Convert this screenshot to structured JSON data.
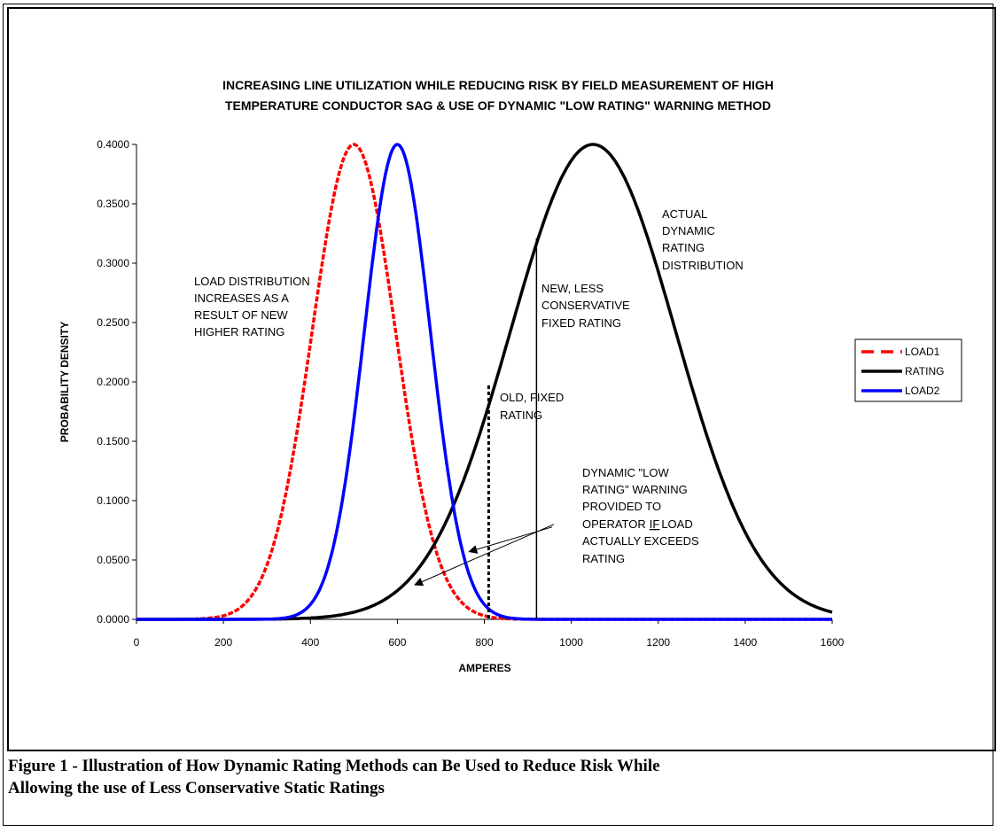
{
  "chart_data": {
    "type": "line",
    "title_lines": [
      "INCREASING LINE UTILIZATION WHILE REDUCING RISK BY FIELD MEASUREMENT OF HIGH",
      "TEMPERATURE CONDUCTOR SAG & USE OF DYNAMIC \"LOW RATING\" WARNING METHOD"
    ],
    "xlabel": "AMPERES",
    "ylabel": "PROBABILITY DENSITY",
    "xlim": [
      0,
      1600
    ],
    "ylim": [
      0,
      0.4
    ],
    "x_ticks": [
      "0",
      "200",
      "400",
      "600",
      "800",
      "1000",
      "1200",
      "1400",
      "1600"
    ],
    "x_tick_values": [
      0,
      200,
      400,
      600,
      800,
      1000,
      1200,
      1400,
      1600
    ],
    "y_ticks": [
      "0.0000",
      "0.0500",
      "0.1000",
      "0.1500",
      "0.2000",
      "0.2500",
      "0.3000",
      "0.3500",
      "0.4000"
    ],
    "y_tick_values": [
      0,
      0.05,
      0.1,
      0.15,
      0.2,
      0.25,
      0.3,
      0.35,
      0.4
    ],
    "grid": false,
    "legend_position": "right",
    "series": [
      {
        "name": "LOAD1",
        "color": "#ff0000",
        "style": "dashed",
        "peak_x": 500,
        "peak_y": 0.4,
        "x": [
          0,
          100,
          200,
          250,
          300,
          350,
          400,
          450,
          500,
          550,
          600,
          650,
          700,
          750,
          800,
          850,
          900,
          1000
        ],
        "y": [
          0,
          0.0013,
          0.0044,
          0.011,
          0.044,
          0.129,
          0.242,
          0.352,
          0.4,
          0.352,
          0.242,
          0.129,
          0.054,
          0.018,
          0.0044,
          0.0011,
          0.0002,
          0
        ]
      },
      {
        "name": "RATING",
        "color": "#000000",
        "style": "solid",
        "peak_x": 1050,
        "peak_y": 0.4,
        "x": [
          0,
          200,
          300,
          400,
          500,
          600,
          700,
          800,
          900,
          1000,
          1050,
          1100,
          1200,
          1300,
          1400,
          1500,
          1600
        ],
        "y": [
          0,
          0.0002,
          0.0015,
          0.0052,
          0.0149,
          0.0371,
          0.079,
          0.143,
          0.243,
          0.386,
          0.4,
          0.386,
          0.243,
          0.143,
          0.079,
          0.037,
          0.0085
        ]
      },
      {
        "name": "LOAD2",
        "color": "#0000ff",
        "style": "solid",
        "peak_x": 600,
        "peak_y": 0.4,
        "x": [
          0,
          300,
          350,
          400,
          450,
          500,
          550,
          600,
          650,
          700,
          750,
          800,
          850,
          900,
          950,
          1000,
          1600
        ],
        "y": [
          0,
          0.0011,
          0.0044,
          0.054,
          0.129,
          0.242,
          0.352,
          0.4,
          0.352,
          0.242,
          0.129,
          0.054,
          0.018,
          0.0044,
          0.0011,
          0.0002,
          0
        ]
      }
    ],
    "markers": [
      {
        "name": "old-fixed-rating",
        "x": 810,
        "y_top": 0.197,
        "style": "dotted"
      },
      {
        "name": "new-fixed-rating",
        "x": 920,
        "y_top": 0.321,
        "style": "solid"
      }
    ],
    "annotations": {
      "load_distribution": [
        "LOAD DISTRIBUTION",
        "INCREASES AS A",
        "RESULT OF NEW",
        "HIGHER RATING"
      ],
      "actual_dynamic": [
        "ACTUAL",
        "DYNAMIC",
        "RATING",
        "DISTRIBUTION"
      ],
      "new_fixed": [
        "NEW, LESS",
        "CONSERVATIVE",
        "FIXED RATING"
      ],
      "old_fixed": [
        "OLD, FIXED",
        "RATING"
      ],
      "warning_lines": [
        "DYNAMIC \"LOW",
        "RATING\"  WARNING",
        "PROVIDED TO",
        "LOAD",
        "ACTUALLY EXCEEDS",
        "RATING"
      ],
      "warning_operator": "OPERATOR",
      "warning_if": "IF",
      "arrow_targets": [
        {
          "x": 640,
          "y": 0.029
        },
        {
          "x": 765,
          "y": 0.057
        }
      ],
      "arrow_start": [
        {
          "x": 960,
          "y": 0.08
        }
      ]
    }
  },
  "caption": {
    "line1": "Figure 1 - Illustration of How Dynamic Rating Methods can Be Used to Reduce Risk While",
    "line2": "Allowing the use of Less Conservative Static Ratings"
  }
}
